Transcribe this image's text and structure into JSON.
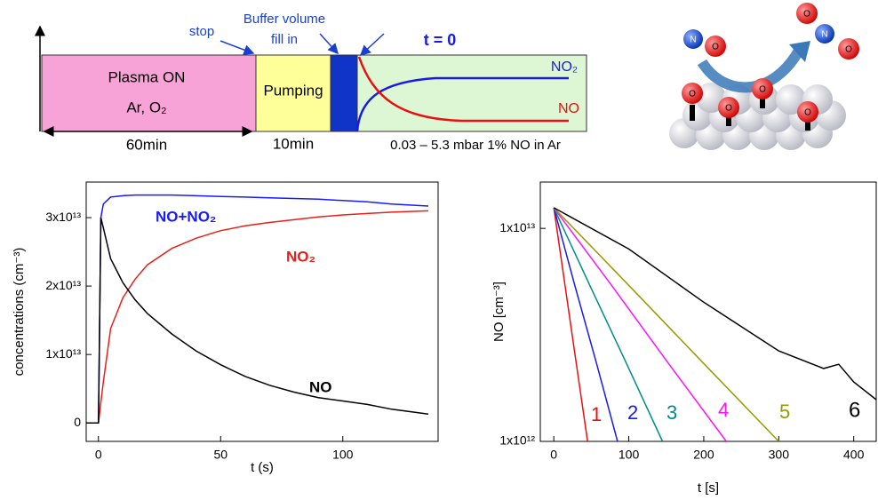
{
  "diagram": {
    "stop": "stop",
    "buffer_line1": "Buffer volume",
    "buffer_line2": "fill in",
    "t0": "t = 0",
    "plasma": "Plasma ON",
    "gases": "Ar, O₂",
    "pumping": "Pumping",
    "no2": "NO₂",
    "no": "NO",
    "time_plasma": "60min",
    "time_pumping": "10min",
    "conditions": "0.03 – 5.3 mbar 1% NO in Ar",
    "molecules": {
      "left": [
        "N",
        "O"
      ],
      "right": [
        "O",
        "N",
        "O"
      ],
      "surface": [
        "O",
        "O",
        "O",
        "O"
      ]
    }
  },
  "chart_data": [
    {
      "type": "line",
      "x_label": "t (s)",
      "y_label": "concentrations (cm⁻³)",
      "x": [
        -5,
        0,
        1,
        2,
        5,
        10,
        15,
        20,
        30,
        40,
        50,
        60,
        70,
        80,
        90,
        100,
        110,
        120,
        135
      ],
      "xlim": [
        -5,
        139
      ],
      "xticks": [
        0,
        50,
        100
      ],
      "ylim": [
        -2700000000000.0,
        35200000000000.0
      ],
      "yticks": [
        0,
        {
          "value": 10000000000000.0,
          "label": "1x10¹³"
        },
        {
          "value": 20000000000000.0,
          "label": "2x10¹³"
        },
        {
          "value": 30000000000000.0,
          "label": "3x10¹³"
        }
      ],
      "series": [
        {
          "name": "NO+NO₂",
          "color": "#1a1aff",
          "values": [
            0,
            0,
            30000000000000.0,
            32000000000000.0,
            33000000000000.0,
            33200000000000.0,
            33300000000000.0,
            33300000000000.0,
            33300000000000.0,
            33200000000000.0,
            33100000000000.0,
            33000000000000.0,
            32900000000000.0,
            32800000000000.0,
            32700000000000.0,
            32500000000000.0,
            32300000000000.0,
            32000000000000.0,
            31700000000000.0
          ]
        },
        {
          "name": "NO₂",
          "color": "#e8201a",
          "values": [
            0,
            0,
            3000000000000.0,
            6000000000000.0,
            13800000000000.0,
            18300000000000.0,
            21000000000000.0,
            23100000000000.0,
            25500000000000.0,
            27000000000000.0,
            28100000000000.0,
            28800000000000.0,
            29300000000000.0,
            29700000000000.0,
            30100000000000.0,
            30400000000000.0,
            30600000000000.0,
            30800000000000.0,
            31000000000000.0
          ]
        },
        {
          "name": "NO",
          "color": "#000000",
          "values": [
            0,
            0,
            30000000000000.0,
            28500000000000.0,
            24000000000000.0,
            20500000000000.0,
            18000000000000.0,
            16000000000000.0,
            13000000000000.0,
            10500000000000.0,
            8500000000000.0,
            6800000000000.0,
            5500000000000.0,
            4500000000000.0,
            3700000000000.0,
            3200000000000.0,
            2700000000000.0,
            2000000000000.0,
            1300000000000.0
          ]
        }
      ]
    },
    {
      "type": "line",
      "log_y": true,
      "x_label": "t [s]",
      "y_label": "NO [cm⁻³]",
      "xlim": [
        -18,
        430
      ],
      "xticks": [
        0,
        100,
        200,
        300,
        400
      ],
      "ylim": [
        1000000000000.0,
        16500000000000.0
      ],
      "yticks": [
        {
          "value": 1000000000000.0,
          "label": "1x10¹²"
        },
        {
          "value": 10000000000000.0,
          "label": "1x10¹³"
        }
      ],
      "series": [
        {
          "name": "1",
          "color": "#e81010",
          "x": [
            0,
            15,
            30,
            45
          ],
          "values": [
            12500000000000.0,
            5400000000000.0,
            2320000000000.0,
            1000000000000.0
          ]
        },
        {
          "name": "2",
          "color": "#1a1ae8",
          "x": [
            0,
            28,
            57,
            85
          ],
          "values": [
            12500000000000.0,
            5400000000000.0,
            2320000000000.0,
            1000000000000.0
          ]
        },
        {
          "name": "3",
          "color": "#008b8b",
          "x": [
            0,
            48,
            97,
            145
          ],
          "values": [
            12500000000000.0,
            5400000000000.0,
            2320000000000.0,
            1000000000000.0
          ]
        },
        {
          "name": "4",
          "color": "#ff10ff",
          "x": [
            0,
            77,
            153,
            230
          ],
          "values": [
            12500000000000.0,
            5400000000000.0,
            2320000000000.0,
            1000000000000.0
          ]
        },
        {
          "name": "5",
          "color": "#999900",
          "x": [
            0,
            100,
            200,
            300
          ],
          "values": [
            12500000000000.0,
            5400000000000.0,
            2320000000000.0,
            1000000000000.0
          ]
        },
        {
          "name": "6",
          "color": "#000000",
          "x": [
            0,
            100,
            200,
            300,
            360,
            380,
            400,
            430
          ],
          "values": [
            12500000000000.0,
            8000000000000.0,
            4500000000000.0,
            2660000000000.0,
            2200000000000.0,
            2300000000000.0,
            1900000000000.0,
            1570000000000.0
          ]
        }
      ]
    }
  ]
}
